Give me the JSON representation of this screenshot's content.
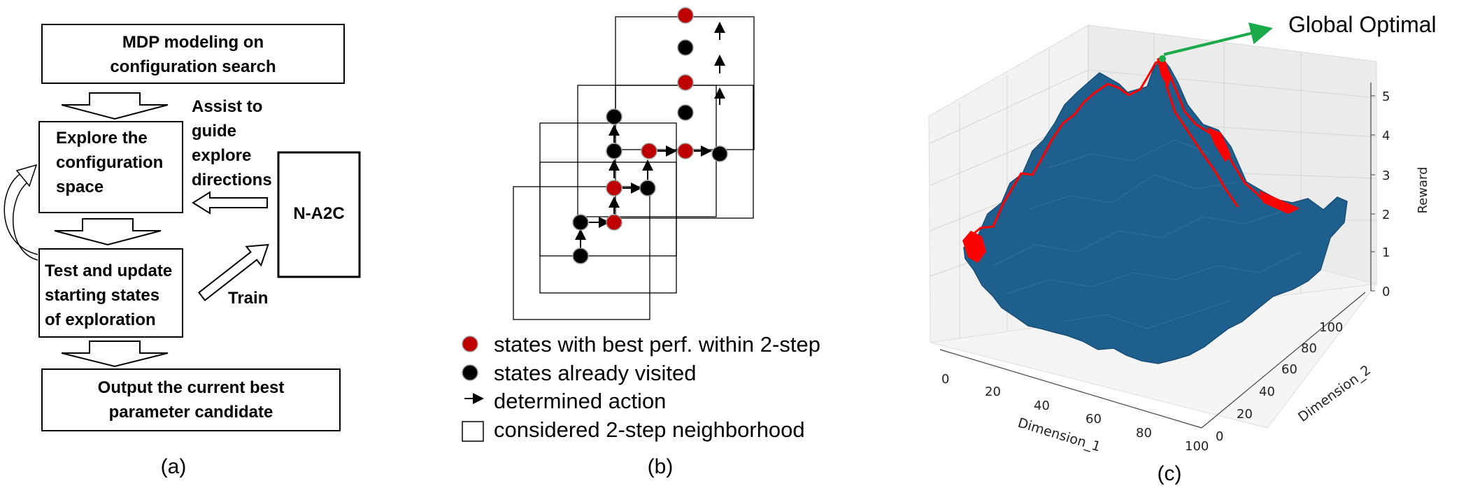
{
  "panel_a": {
    "boxes": {
      "mdp": [
        "MDP modeling on",
        "configuration search"
      ],
      "explore": [
        "Explore the",
        "configuration",
        "space"
      ],
      "test": [
        "Test and update",
        "starting states",
        "of exploration"
      ],
      "output": [
        "Output the current best",
        "parameter candidate"
      ],
      "agent": "N-A2C"
    },
    "assist": [
      "Assist to",
      "guide",
      "explore",
      "directions"
    ],
    "train": "Train",
    "caption": "(a)"
  },
  "panel_b": {
    "legend": {
      "red": "states with best perf. within 2-step",
      "black": "states already visited",
      "arrow": "determined action",
      "square": "considered 2-step neighborhood"
    },
    "colors": {
      "best": "#c00000",
      "visited": "#000000"
    },
    "caption": "(b)"
  },
  "panel_c": {
    "annotation": "Global Optimal",
    "z_label": "Reward",
    "x_label": "Dimension_1",
    "y_label": "Dimension_2",
    "z_ticks": [
      "0",
      "1",
      "2",
      "3",
      "4",
      "5"
    ],
    "x_ticks": [
      "0",
      "20",
      "40",
      "60",
      "80",
      "100"
    ],
    "y_ticks": [
      "0",
      "20",
      "40",
      "60",
      "80",
      "100"
    ],
    "colors": {
      "surface": "#1f5f8e",
      "path": "#ff0000",
      "arrow": "#1aaa4a"
    },
    "caption": "(c)"
  }
}
